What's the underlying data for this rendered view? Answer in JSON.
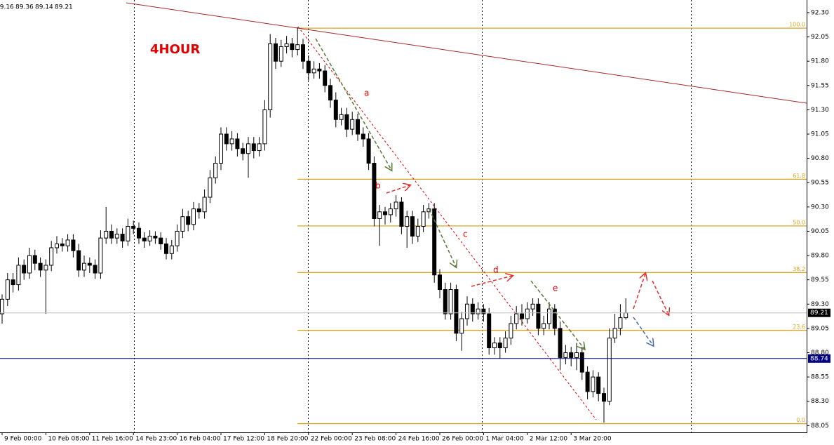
{
  "chart_data": {
    "type": "candlestick",
    "title": "4HOUR",
    "ylim": [
      87.98,
      92.43
    ],
    "yticks": [
      {
        "value": 92.3,
        "label": "92.30"
      },
      {
        "value": 92.05,
        "label": "92.05"
      },
      {
        "value": 91.8,
        "label": "91.80"
      },
      {
        "value": 91.55,
        "label": "91.55"
      },
      {
        "value": 91.3,
        "label": "91.30"
      },
      {
        "value": 91.05,
        "label": "91.05"
      },
      {
        "value": 90.8,
        "label": "90.80"
      },
      {
        "value": 90.55,
        "label": "90.55"
      },
      {
        "value": 90.3,
        "label": "90.30"
      },
      {
        "value": 90.05,
        "label": "90.05"
      },
      {
        "value": 89.8,
        "label": "89.80"
      },
      {
        "value": 89.55,
        "label": "89.55"
      },
      {
        "value": 89.3,
        "label": "89.30"
      },
      {
        "value": 89.05,
        "label": "89.05"
      },
      {
        "value": 88.8,
        "label": "88.80"
      },
      {
        "value": 88.55,
        "label": "88.55"
      },
      {
        "value": 88.3,
        "label": "88.30"
      },
      {
        "value": 88.05,
        "label": "88.05"
      }
    ],
    "xticks": [
      {
        "value": 0,
        "label": "9 Feb 00:00"
      },
      {
        "value": 8,
        "label": "10 Feb 08:00"
      },
      {
        "value": 16,
        "label": "11 Feb 16:00"
      },
      {
        "value": 24,
        "label": "14 Feb 23:00"
      },
      {
        "value": 32,
        "label": "16 Feb 04:00"
      },
      {
        "value": 40,
        "label": "17 Feb 12:00"
      },
      {
        "value": 48,
        "label": "18 Feb 20:00"
      },
      {
        "value": 56,
        "label": "22 Feb 00:00"
      },
      {
        "value": 64,
        "label": "23 Feb 08:00"
      },
      {
        "value": 72,
        "label": "24 Feb 16:00"
      },
      {
        "value": 80,
        "label": "26 Feb 00:00"
      },
      {
        "value": 88,
        "label": "1 Mar 04:00"
      },
      {
        "value": 96,
        "label": "2 Mar 12:00"
      },
      {
        "value": 104,
        "label": "3 Mar 20:00"
      }
    ],
    "ohlc": [
      [
        89.2,
        89.4,
        89.1,
        89.35
      ],
      [
        89.35,
        89.62,
        89.28,
        89.55
      ],
      [
        89.55,
        89.62,
        89.42,
        89.5
      ],
      [
        89.5,
        89.78,
        89.44,
        89.7
      ],
      [
        89.7,
        89.76,
        89.55,
        89.62
      ],
      [
        89.62,
        89.88,
        89.56,
        89.8
      ],
      [
        89.8,
        89.86,
        89.65,
        89.72
      ],
      [
        89.72,
        89.78,
        89.58,
        89.65
      ],
      [
        89.65,
        89.76,
        89.2,
        89.7
      ],
      [
        89.7,
        89.95,
        89.64,
        89.88
      ],
      [
        89.88,
        90.0,
        89.82,
        89.92
      ],
      [
        89.92,
        89.98,
        89.84,
        89.9
      ],
      [
        89.9,
        90.02,
        89.84,
        89.96
      ],
      [
        89.96,
        90.02,
        89.78,
        89.85
      ],
      [
        89.85,
        89.92,
        89.58,
        89.65
      ],
      [
        89.65,
        89.8,
        89.58,
        89.72
      ],
      [
        89.72,
        89.78,
        89.62,
        89.7
      ],
      [
        89.7,
        89.76,
        89.56,
        89.62
      ],
      [
        89.62,
        90.06,
        89.56,
        89.98
      ],
      [
        89.98,
        90.3,
        89.92,
        90.05
      ],
      [
        90.05,
        90.12,
        89.92,
        89.98
      ],
      [
        89.98,
        90.08,
        89.92,
        90.02
      ],
      [
        90.02,
        90.08,
        89.88,
        89.95
      ],
      [
        89.95,
        90.18,
        89.9,
        90.1
      ],
      [
        90.1,
        90.16,
        90.02,
        90.08
      ],
      [
        90.08,
        90.14,
        89.92,
        89.98
      ],
      [
        89.98,
        90.04,
        89.88,
        89.95
      ],
      [
        89.95,
        90.06,
        89.9,
        90.0
      ],
      [
        90.0,
        90.05,
        89.92,
        89.98
      ],
      [
        89.98,
        90.04,
        89.86,
        89.92
      ],
      [
        89.92,
        89.98,
        89.76,
        89.82
      ],
      [
        89.82,
        89.96,
        89.76,
        89.9
      ],
      [
        89.9,
        90.12,
        89.84,
        90.05
      ],
      [
        90.05,
        90.28,
        89.98,
        90.2
      ],
      [
        90.2,
        90.26,
        90.05,
        90.12
      ],
      [
        90.12,
        90.35,
        90.06,
        90.28
      ],
      [
        90.28,
        90.34,
        90.18,
        90.25
      ],
      [
        90.25,
        90.48,
        90.18,
        90.4
      ],
      [
        90.4,
        90.68,
        90.34,
        90.6
      ],
      [
        90.6,
        90.82,
        90.54,
        90.75
      ],
      [
        90.75,
        91.12,
        90.68,
        91.05
      ],
      [
        91.05,
        91.12,
        90.88,
        90.95
      ],
      [
        90.95,
        91.08,
        90.88,
        91.0
      ],
      [
        91.0,
        91.06,
        90.82,
        90.9
      ],
      [
        90.9,
        90.96,
        90.78,
        90.85
      ],
      [
        90.85,
        91.02,
        90.6,
        90.95
      ],
      [
        90.95,
        91.02,
        90.8,
        90.88
      ],
      [
        90.88,
        91.02,
        90.82,
        90.95
      ],
      [
        90.95,
        91.4,
        90.88,
        91.3
      ],
      [
        91.3,
        92.08,
        91.22,
        91.98
      ],
      [
        91.98,
        92.04,
        91.72,
        91.8
      ],
      [
        91.8,
        92.02,
        91.74,
        91.95
      ],
      [
        91.95,
        92.06,
        91.88,
        91.98
      ],
      [
        91.98,
        92.04,
        91.84,
        91.92
      ],
      [
        91.92,
        92.15,
        91.86,
        91.97
      ],
      [
        91.97,
        92.03,
        91.72,
        91.8
      ],
      [
        91.8,
        91.86,
        91.6,
        91.68
      ],
      [
        91.68,
        91.8,
        91.62,
        91.72
      ],
      [
        91.72,
        91.78,
        91.62,
        91.7
      ],
      [
        91.7,
        91.76,
        91.48,
        91.55
      ],
      [
        91.55,
        91.62,
        91.32,
        91.4
      ],
      [
        91.4,
        91.48,
        91.12,
        91.2
      ],
      [
        91.2,
        91.32,
        91.14,
        91.25
      ],
      [
        91.25,
        91.32,
        91.02,
        91.1
      ],
      [
        91.1,
        91.28,
        91.04,
        91.2
      ],
      [
        91.2,
        91.26,
        90.98,
        91.05
      ],
      [
        91.05,
        91.12,
        90.92,
        91.0
      ],
      [
        91.0,
        91.06,
        90.68,
        90.75
      ],
      [
        90.75,
        90.82,
        90.1,
        90.18
      ],
      [
        90.18,
        90.32,
        89.9,
        90.25
      ],
      [
        90.25,
        90.3,
        90.12,
        90.22
      ],
      [
        90.22,
        90.34,
        90.14,
        90.28
      ],
      [
        90.28,
        90.42,
        90.2,
        90.35
      ],
      [
        90.35,
        90.4,
        90.02,
        90.1
      ],
      [
        90.1,
        90.26,
        89.88,
        90.2
      ],
      [
        90.2,
        90.26,
        89.92,
        90.0
      ],
      [
        90.0,
        90.18,
        89.94,
        90.1
      ],
      [
        90.1,
        90.32,
        90.04,
        90.25
      ],
      [
        90.25,
        90.34,
        90.18,
        90.28
      ],
      [
        90.28,
        90.34,
        89.52,
        89.6
      ],
      [
        89.6,
        89.66,
        89.36,
        89.45
      ],
      [
        89.45,
        89.52,
        89.14,
        89.2
      ],
      [
        89.2,
        89.52,
        89.14,
        89.45
      ],
      [
        89.45,
        89.5,
        88.92,
        89.0
      ],
      [
        89.0,
        89.22,
        88.82,
        89.15
      ],
      [
        89.15,
        89.38,
        89.08,
        89.3
      ],
      [
        89.3,
        89.36,
        89.12,
        89.2
      ],
      [
        89.2,
        89.32,
        89.14,
        89.25
      ],
      [
        89.25,
        89.3,
        89.12,
        89.2
      ],
      [
        89.2,
        89.26,
        88.78,
        88.85
      ],
      [
        88.85,
        88.96,
        88.78,
        88.9
      ],
      [
        88.9,
        88.96,
        88.74,
        88.85
      ],
      [
        88.85,
        89.02,
        88.8,
        88.95
      ],
      [
        88.95,
        89.18,
        88.88,
        89.1
      ],
      [
        89.1,
        89.28,
        89.04,
        89.2
      ],
      [
        89.2,
        89.3,
        89.08,
        89.15
      ],
      [
        89.15,
        89.32,
        89.1,
        89.25
      ],
      [
        89.25,
        89.36,
        89.18,
        89.3
      ],
      [
        89.3,
        89.36,
        88.98,
        89.05
      ],
      [
        89.05,
        89.18,
        88.98,
        89.1
      ],
      [
        89.1,
        89.32,
        89.04,
        89.25
      ],
      [
        89.25,
        89.3,
        88.98,
        89.05
      ],
      [
        89.05,
        89.12,
        88.62,
        88.75
      ],
      [
        88.75,
        88.88,
        88.68,
        88.8
      ],
      [
        88.8,
        88.86,
        88.66,
        88.75
      ],
      [
        88.75,
        88.9,
        88.62,
        88.8
      ],
      [
        88.8,
        88.86,
        88.52,
        88.6
      ],
      [
        88.6,
        88.66,
        88.32,
        88.4
      ],
      [
        88.4,
        88.62,
        88.34,
        88.55
      ],
      [
        88.55,
        88.6,
        88.3,
        88.38
      ],
      [
        88.38,
        88.44,
        88.08,
        88.3
      ],
      [
        88.3,
        89.05,
        88.26,
        88.95
      ],
      [
        88.95,
        89.2,
        88.9,
        89.05
      ],
      [
        89.05,
        89.3,
        88.98,
        89.16
      ],
      [
        89.16,
        89.36,
        89.14,
        89.21
      ]
    ],
    "hline": {
      "value": 88.74,
      "color": "#000080"
    },
    "fib": {
      "high": 92.14,
      "low": 88.07,
      "color": "#daa520",
      "levels": [
        {
          "value": 100,
          "label": "100.0"
        },
        61.8,
        {
          "value": 50,
          "label": "50.0"
        },
        38.2,
        23.6,
        {
          "value": 0,
          "label": "0.0"
        }
      ]
    },
    "annotations": [
      "a",
      "b",
      "c",
      "d",
      "e"
    ]
  }
}
